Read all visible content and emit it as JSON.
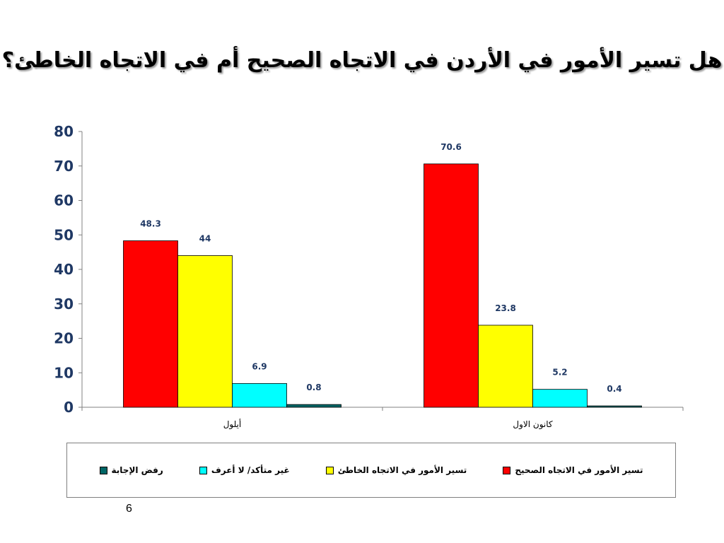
{
  "slide": {
    "title": "هل تسير الأمور في الأردن في الاتجاه الصحيح أم في الاتجاه الخاطئ؟",
    "page_number": "6"
  },
  "chart_data": {
    "type": "bar",
    "title": "هل تسير الأمور في الأردن في الاتجاه الصحيح أم في الاتجاه الخاطئ؟",
    "categories": [
      "أيلول",
      "كانون الاول"
    ],
    "series": [
      {
        "name": "تسير الأمور في الاتجاه الصحيح",
        "color": "#ff0000",
        "values": [
          48.3,
          70.6
        ],
        "labels": [
          "48.3",
          "70.6"
        ]
      },
      {
        "name": "تسير الأمور في الاتجاه الخاطئ",
        "color": "#ffff00",
        "values": [
          44,
          23.8
        ],
        "labels": [
          "44",
          "23.8"
        ]
      },
      {
        "name": "غير متأكد/ لا أعرف",
        "color": "#00ffff",
        "values": [
          6.9,
          5.2
        ],
        "labels": [
          "6.9",
          "5.2"
        ]
      },
      {
        "name": "رفض الإجابة",
        "color": "#006666",
        "values": [
          0.8,
          0.4
        ],
        "labels": [
          "0.8",
          "0.4"
        ]
      }
    ],
    "ylim": [
      0,
      80
    ],
    "yticks": [
      "0",
      "10",
      "20",
      "30",
      "40",
      "50",
      "60",
      "70",
      "80"
    ],
    "xlabel": "",
    "ylabel": "",
    "grid": false,
    "legend_position": "bottom"
  }
}
